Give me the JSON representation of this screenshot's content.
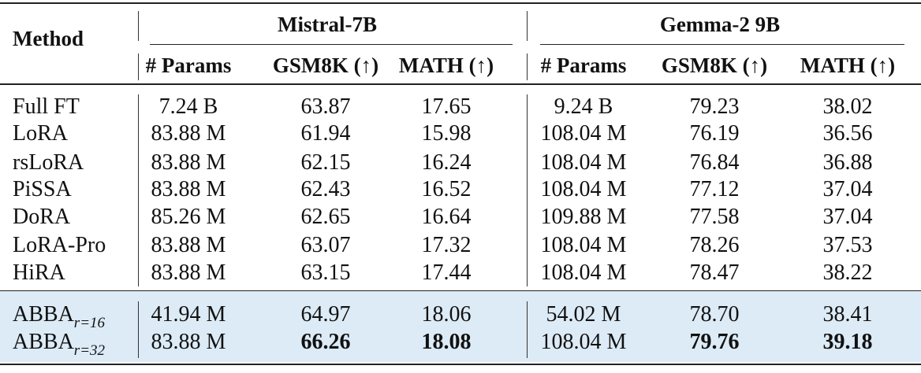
{
  "table": {
    "header": {
      "method": "Method",
      "groups": [
        "Mistral-7B",
        "Gemma-2 9B"
      ],
      "columns": [
        "# Params",
        "GSM8K (↑)",
        "MATH (↑)",
        "# Params",
        "GSM8K (↑)",
        "MATH (↑)"
      ]
    },
    "rows": [
      {
        "method": "Full FT",
        "cells": [
          "7.24 B",
          "63.87",
          "17.65",
          "9.24 B",
          "79.23",
          "38.02"
        ]
      },
      {
        "method": "LoRA",
        "cells": [
          "83.88 M",
          "61.94",
          "15.98",
          "108.04 M",
          "76.19",
          "36.56"
        ]
      },
      {
        "method": "rsLoRA",
        "cells": [
          "83.88 M",
          "62.15",
          "16.24",
          "108.04 M",
          "76.84",
          "36.88"
        ]
      },
      {
        "method": "PiSSA",
        "cells": [
          "83.88 M",
          "62.43",
          "16.52",
          "108.04 M",
          "77.12",
          "37.04"
        ]
      },
      {
        "method": "DoRA",
        "cells": [
          "85.26 M",
          "62.65",
          "16.64",
          "109.88 M",
          "77.58",
          "37.04"
        ]
      },
      {
        "method": "LoRA-Pro",
        "cells": [
          "83.88 M",
          "63.07",
          "17.32",
          "108.04 M",
          "78.26",
          "37.53"
        ]
      },
      {
        "method": "HiRA",
        "cells": [
          "83.88 M",
          "63.15",
          "17.44",
          "108.04 M",
          "78.47",
          "38.22"
        ]
      }
    ],
    "abba_rows": [
      {
        "method": "ABBA",
        "subscript": "r=16",
        "cells": [
          "41.94 M",
          "64.97",
          "18.06",
          "54.02 M",
          "78.70",
          "38.41"
        ],
        "bold": [
          false,
          false,
          false,
          false,
          false,
          false
        ]
      },
      {
        "method": "ABBA",
        "subscript": "r=32",
        "cells": [
          "83.88 M",
          "66.26",
          "18.08",
          "108.04 M",
          "79.76",
          "39.18"
        ],
        "bold": [
          false,
          true,
          true,
          false,
          true,
          true
        ]
      }
    ],
    "highlight_color": "#dcebf6"
  }
}
